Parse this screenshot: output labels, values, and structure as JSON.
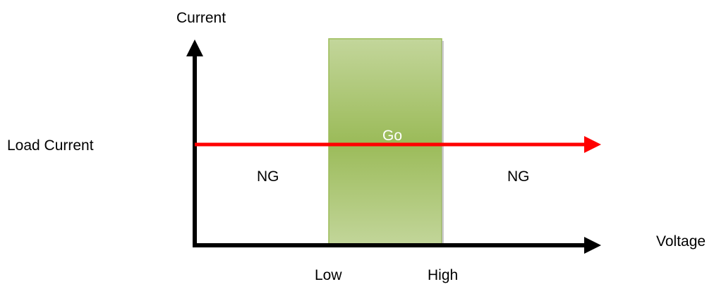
{
  "diagram": {
    "y_axis_label": "Current",
    "x_axis_label": "Voltage",
    "load_current_label": "Load Current",
    "x_low_label": "Low",
    "x_high_label": "High",
    "go_label": "Go",
    "ng_left_label": "NG",
    "ng_right_label": "NG"
  },
  "colors": {
    "axis": "#000000",
    "load_line": "#ff0000",
    "go_band_edge": "#c3d69b",
    "go_band_center": "#9bbb59",
    "go_band_border": "#9bbb59"
  }
}
